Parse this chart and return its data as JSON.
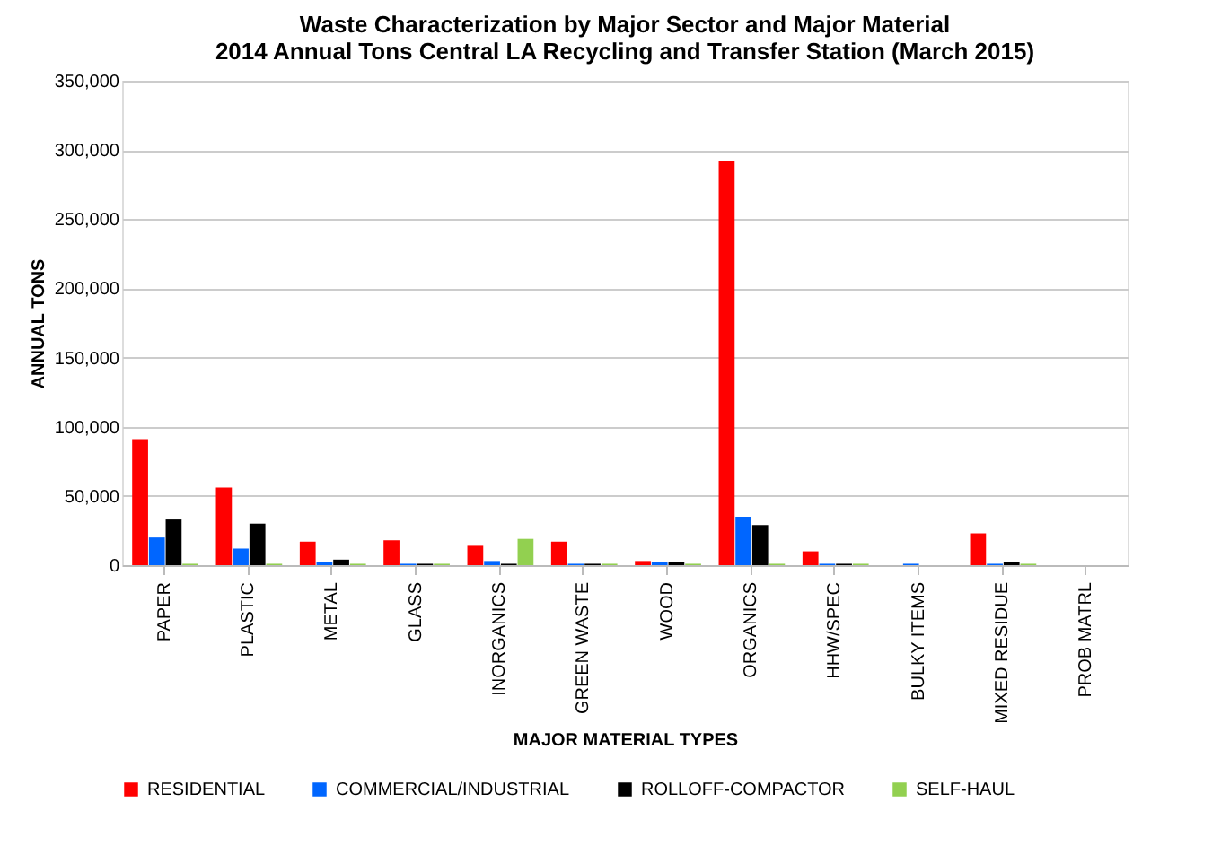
{
  "chart_data": {
    "type": "bar",
    "title": [
      "Waste Characterization by Major Sector and Major Material",
      "2014 Annual Tons Central LA Recycling and Transfer Station (March 2015)"
    ],
    "xlabel": "MAJOR MATERIAL TYPES",
    "ylabel": "ANNUAL TONS",
    "categories": [
      "PAPER",
      "PLASTIC",
      "METAL",
      "GLASS",
      "INORGANICS",
      "GREEN WASTE",
      "WOOD",
      "ORGANICS",
      "HHW/SPEC",
      "BULKY ITEMS",
      "MIXED RESIDUE",
      "PROB MATRL"
    ],
    "series": [
      {
        "name": "RESIDENTIAL",
        "color": "#ff0000",
        "values": [
          91000,
          56000,
          17000,
          18000,
          14000,
          17000,
          3000,
          292000,
          10000,
          0,
          23000,
          0
        ]
      },
      {
        "name": "COMMERCIAL/INDUSTRIAL",
        "color": "#0066ff",
        "values": [
          20000,
          12000,
          2000,
          1000,
          3000,
          1000,
          2000,
          35000,
          1000,
          1000,
          1000,
          0
        ]
      },
      {
        "name": "ROLLOFF-COMPACTOR",
        "color": "#000000",
        "values": [
          33000,
          30000,
          4000,
          1000,
          1000,
          1000,
          2000,
          29000,
          1000,
          0,
          2000,
          0
        ]
      },
      {
        "name": "SELF-HAUL",
        "color": "#92d050",
        "values": [
          1000,
          1000,
          1000,
          1000,
          19000,
          1000,
          1000,
          1000,
          1000,
          0,
          1000,
          0
        ]
      }
    ],
    "ylim": [
      0,
      350000
    ],
    "yticks": [
      {
        "value": 0,
        "label": "0"
      },
      {
        "value": 50000,
        "label": "50,000"
      },
      {
        "value": 100000,
        "label": "100,000"
      },
      {
        "value": 150000,
        "label": "150,000"
      },
      {
        "value": 200000,
        "label": "200,000"
      },
      {
        "value": 250000,
        "label": "250,000"
      },
      {
        "value": 300000,
        "label": "300,000"
      },
      {
        "value": 350000,
        "label": "350,000"
      }
    ],
    "grid": "y",
    "legend": "bottom"
  }
}
